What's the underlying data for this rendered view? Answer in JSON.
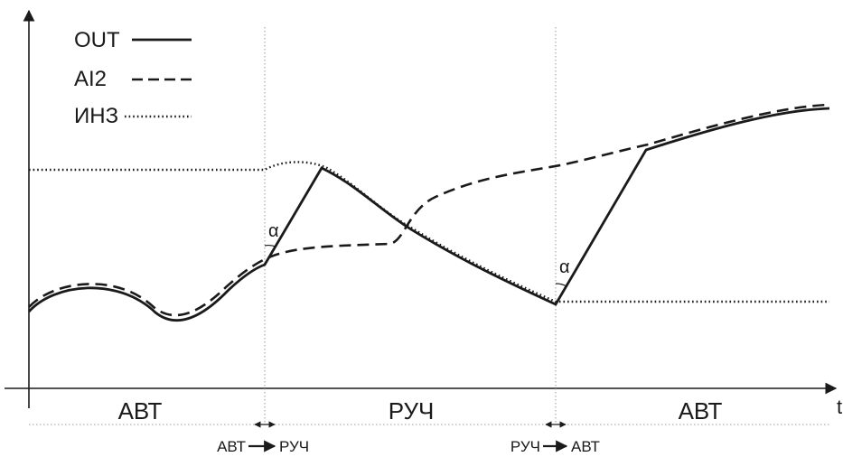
{
  "legend": {
    "out": "OUT",
    "ai2": "AI2",
    "inz": "ИНЗ"
  },
  "axis": {
    "t": "t"
  },
  "modes": {
    "auto_left": "АВТ",
    "manual": "РУЧ",
    "auto_right": "АВТ"
  },
  "transitions": {
    "auto_to_manual_from": "АВТ",
    "auto_to_manual_to": "РУЧ",
    "manual_to_auto_from": "РУЧ",
    "manual_to_auto_to": "АВТ"
  },
  "angles": {
    "first": "α",
    "second": "α"
  },
  "colors": {
    "ink": "#1a1a1a",
    "guide": "#9a9a9a"
  }
}
